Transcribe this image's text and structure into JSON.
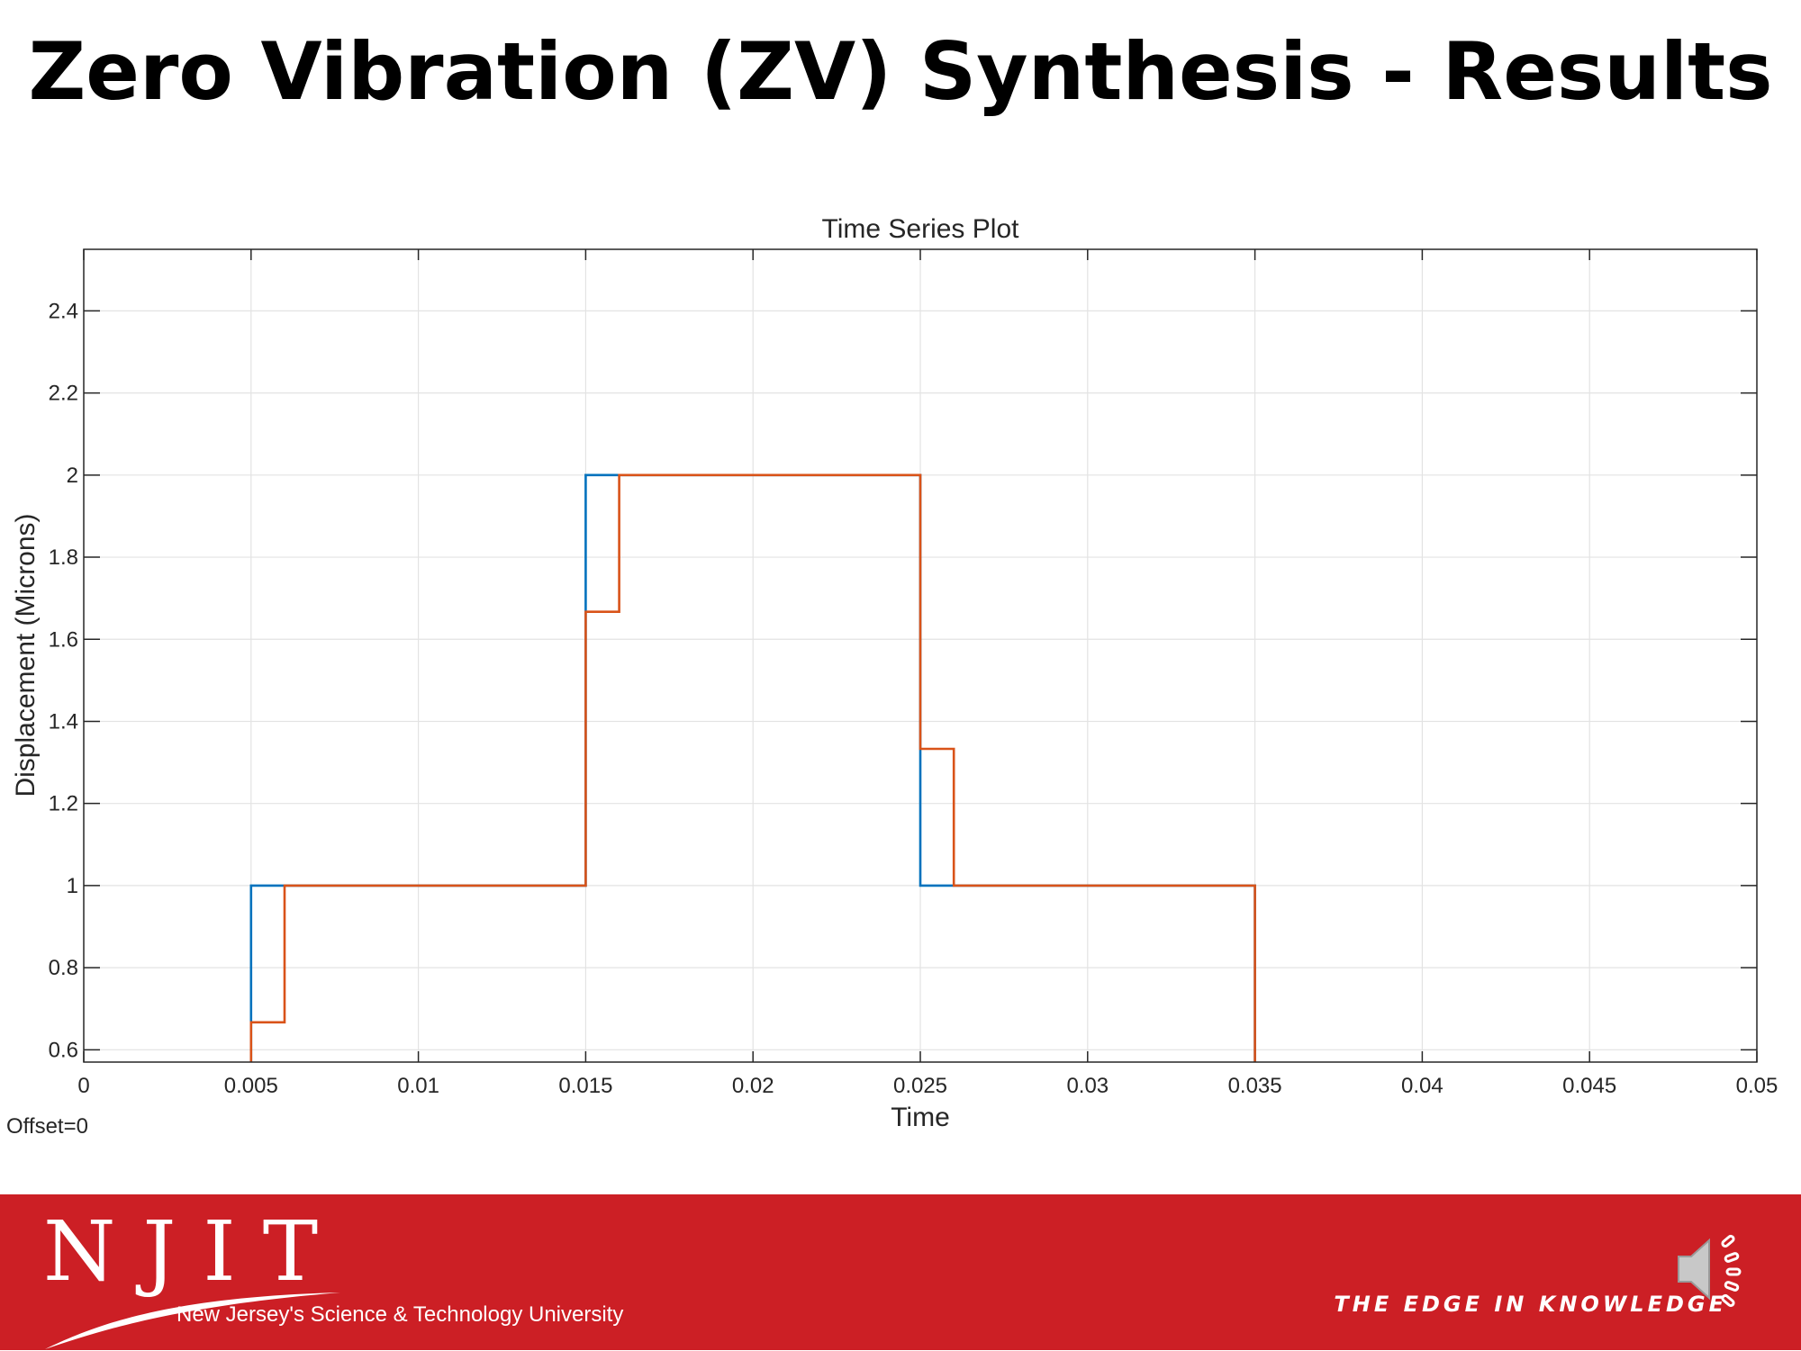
{
  "slide": {
    "title": "Zero Vibration (ZV) Synthesis - Results"
  },
  "chart_data": {
    "type": "line",
    "title": "Time Series Plot",
    "xlabel": "Time",
    "ylabel": "Displacement (Microns)",
    "xlim": [
      0,
      0.05
    ],
    "ylim": [
      0.57,
      2.55
    ],
    "xticks": [
      0,
      0.005,
      0.01,
      0.015,
      0.02,
      0.025,
      0.03,
      0.035,
      0.04,
      0.045,
      0.05
    ],
    "xtick_labels": [
      "0",
      "0.005",
      "0.01",
      "0.015",
      "0.02",
      "0.025",
      "0.03",
      "0.035",
      "0.04",
      "0.045",
      "0.05"
    ],
    "yticks": [
      0.6,
      0.8,
      1,
      1.2,
      1.4,
      1.6,
      1.8,
      2,
      2.2,
      2.4
    ],
    "ytick_labels": [
      "0.6",
      "0.8",
      "1",
      "1.2",
      "1.4",
      "1.6",
      "1.8",
      "2",
      "2.2",
      "2.4"
    ],
    "grid": true,
    "annotation": "Offset=0",
    "series": [
      {
        "color": "#0072bd",
        "x": [
          0.005,
          0.005,
          0.015,
          0.015,
          0.025,
          0.025,
          0.035,
          0.035
        ],
        "y": [
          0.57,
          1.0,
          1.0,
          2.0,
          2.0,
          1.0,
          1.0,
          0.57
        ]
      },
      {
        "color": "#d95319",
        "x": [
          0.005,
          0.005,
          0.006,
          0.006,
          0.015,
          0.015,
          0.016,
          0.016,
          0.025,
          0.025,
          0.026,
          0.026,
          0.035,
          0.035
        ],
        "y": [
          0.57,
          0.667,
          0.667,
          1.0,
          1.0,
          1.667,
          1.667,
          2.0,
          2.0,
          1.333,
          1.333,
          1.0,
          1.0,
          0.57
        ]
      }
    ]
  },
  "footer": {
    "logo_letters": "NJIT",
    "logo_tagline": "New Jersey's Science & Technology University",
    "motto": "THE EDGE IN KNOWLEDGE",
    "background_color": "#cc1f25",
    "speaker_icon": "speaker-icon"
  }
}
